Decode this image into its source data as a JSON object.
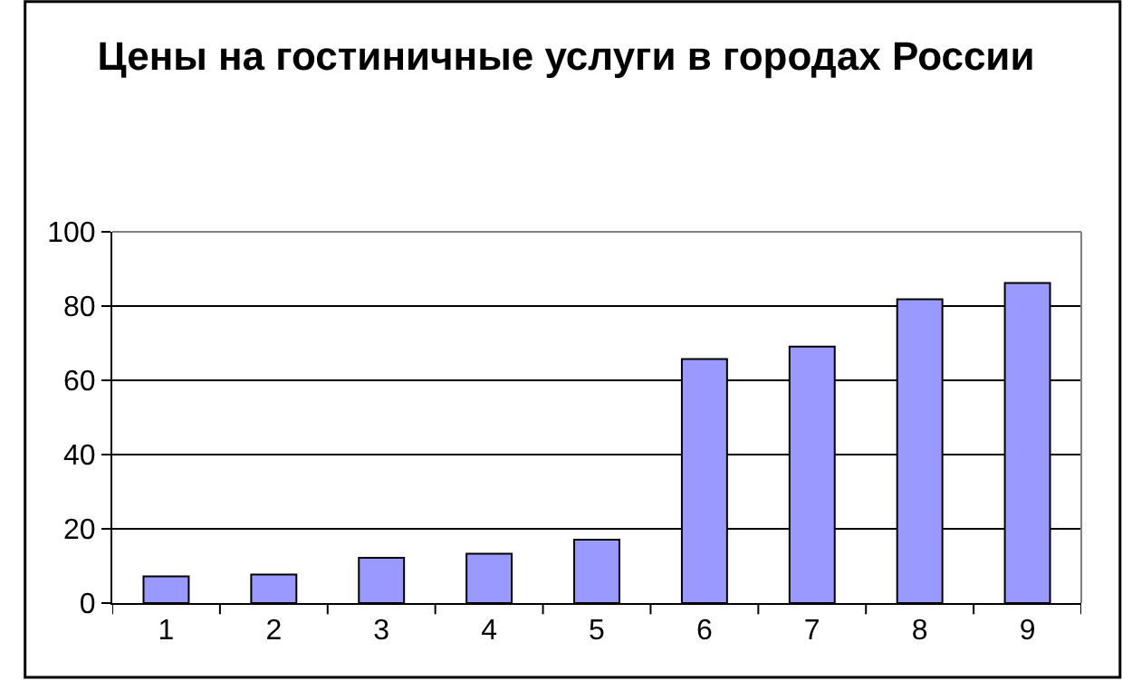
{
  "chart_data": {
    "type": "bar",
    "title": "Цены на гостиничные услуги в городах России",
    "categories": [
      "1",
      "2",
      "3",
      "4",
      "5",
      "6",
      "7",
      "8",
      "9"
    ],
    "values": [
      7.2,
      7.7,
      12.2,
      13.3,
      17.1,
      65.7,
      69.1,
      81.8,
      86.2
    ],
    "color": "#9999ff",
    "ylim": [
      0,
      100
    ],
    "yticks": [
      0,
      20,
      40,
      60,
      80,
      100
    ],
    "grid": "y",
    "legend": false
  }
}
